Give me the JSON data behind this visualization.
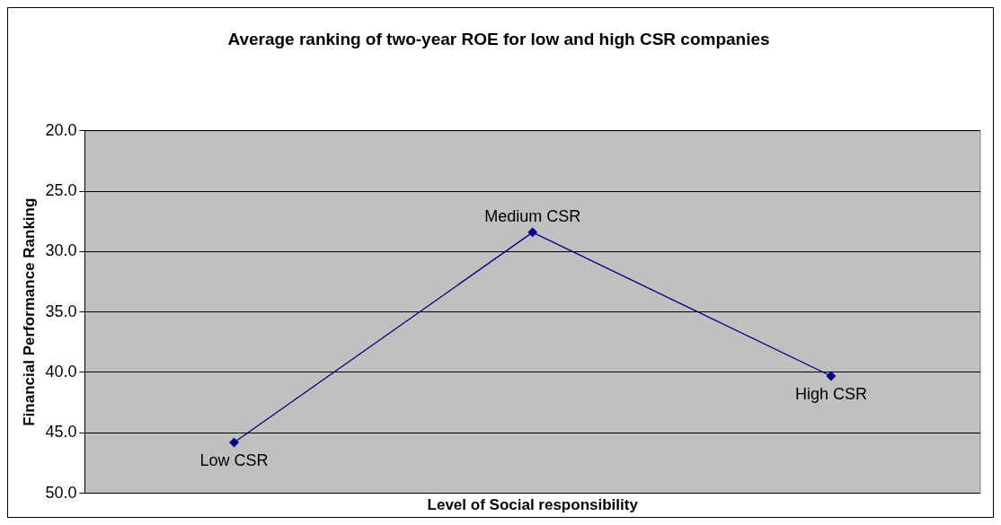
{
  "chart_data": {
    "type": "line",
    "title": "Average ranking of two-year ROE for low and high CSR companies",
    "xlabel": "Level of Social responsibility",
    "ylabel": "Financial Performance Ranking",
    "categories": [
      "Low CSR",
      "Medium CSR",
      "High CSR"
    ],
    "series": [
      {
        "color": "#000080",
        "values": [
          45.8,
          28.4,
          40.3
        ]
      }
    ],
    "ylim": [
      50,
      20
    ],
    "yticks": [
      {
        "value": 50,
        "label": "50.0"
      },
      {
        "value": 45,
        "label": "45.0"
      },
      {
        "value": 40,
        "label": "40.0"
      },
      {
        "value": 35,
        "label": "35.0"
      },
      {
        "value": 30,
        "label": "30.0"
      },
      {
        "value": 25,
        "label": "25.0"
      },
      {
        "value": 20,
        "label": "20.0"
      }
    ],
    "tick_labels": "y",
    "grid": "y",
    "legend": false,
    "marker": "diamond",
    "line_style": "solid"
  }
}
